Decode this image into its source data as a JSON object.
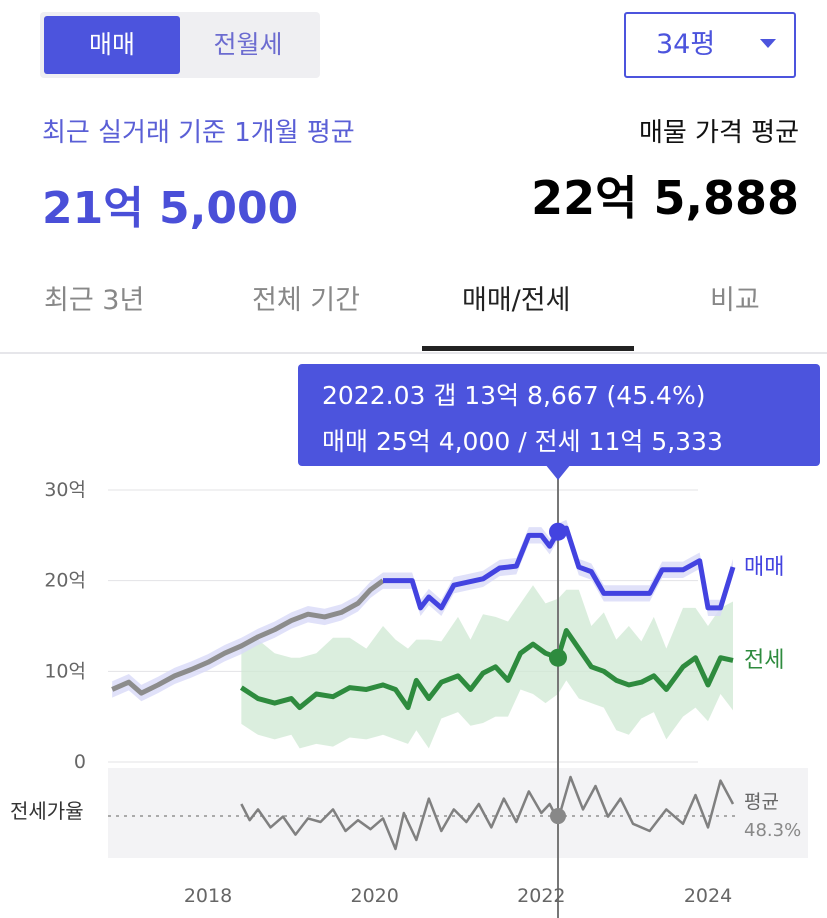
{
  "toggle": {
    "sale": "매매",
    "jeonse_monthly": "전월세"
  },
  "size_select": {
    "value": "34평"
  },
  "recent": {
    "label": "최근 실거래 기준 1개월 평균",
    "value": "21억 5,000"
  },
  "asking": {
    "label": "매물 가격 평균",
    "value": "22억 5,888"
  },
  "tabs": [
    "최근 3년",
    "전체 기간",
    "매매/전세",
    "비교"
  ],
  "tooltip": {
    "line1": "2022.03  갭 13억 8,667 (45.4%)",
    "line2": "매매 25억 4,000 / 전세 11억 5,333"
  },
  "colors": {
    "accent": "#4c54dd",
    "sale": "#4343e0",
    "sale_past": "#8c8c8c",
    "jeonse": "#2e8b3e",
    "jeonse_band": "#cfe8d3",
    "ratio": "#808080"
  },
  "chart_data": {
    "type": "line",
    "x_unit": "year",
    "ylabel_unit": "억",
    "yticks": [
      "30억",
      "20억",
      "10억",
      "0"
    ],
    "ylim": [
      0,
      30
    ],
    "xlim": [
      2016.8,
      2025.2
    ],
    "xticks": [
      "2018",
      "2020",
      "2022",
      "2024"
    ],
    "xtick_values": [
      2018,
      2020,
      2022,
      2024
    ],
    "series": [
      {
        "name": "매매",
        "values": [
          [
            2016.85,
            8.0
          ],
          [
            2017.05,
            8.8
          ],
          [
            2017.2,
            7.6
          ],
          [
            2017.4,
            8.5
          ],
          [
            2017.6,
            9.5
          ],
          [
            2017.8,
            10.2
          ],
          [
            2018.0,
            11.0
          ],
          [
            2018.2,
            12.0
          ],
          [
            2018.4,
            12.8
          ],
          [
            2018.6,
            13.8
          ],
          [
            2018.8,
            14.6
          ],
          [
            2019.0,
            15.6
          ],
          [
            2019.2,
            16.3
          ],
          [
            2019.4,
            16.0
          ],
          [
            2019.6,
            16.5
          ],
          [
            2019.8,
            17.5
          ],
          [
            2019.95,
            19.0
          ],
          [
            2020.1,
            20.0
          ],
          [
            2020.3,
            20.0
          ],
          [
            2020.45,
            20.0
          ],
          [
            2020.55,
            17.0
          ],
          [
            2020.65,
            18.2
          ],
          [
            2020.8,
            17.0
          ],
          [
            2020.95,
            19.5
          ],
          [
            2021.1,
            19.8
          ],
          [
            2021.3,
            20.2
          ],
          [
            2021.5,
            21.4
          ],
          [
            2021.7,
            21.6
          ],
          [
            2021.85,
            25.0
          ],
          [
            2022.0,
            25.0
          ],
          [
            2022.1,
            23.8
          ],
          [
            2022.2,
            25.4
          ],
          [
            2022.3,
            25.8
          ],
          [
            2022.45,
            21.5
          ],
          [
            2022.6,
            21.0
          ],
          [
            2022.75,
            18.6
          ],
          [
            2023.0,
            18.6
          ],
          [
            2023.3,
            18.6
          ],
          [
            2023.45,
            21.2
          ],
          [
            2023.7,
            21.2
          ],
          [
            2023.9,
            22.2
          ],
          [
            2024.0,
            17.0
          ],
          [
            2024.15,
            17.0
          ],
          [
            2024.3,
            21.5
          ]
        ]
      },
      {
        "name": "전세",
        "values": [
          [
            2018.4,
            8.2
          ],
          [
            2018.6,
            7.0
          ],
          [
            2018.8,
            6.5
          ],
          [
            2019.0,
            7.0
          ],
          [
            2019.1,
            6.0
          ],
          [
            2019.3,
            7.5
          ],
          [
            2019.5,
            7.2
          ],
          [
            2019.7,
            8.2
          ],
          [
            2019.9,
            8.0
          ],
          [
            2020.1,
            8.5
          ],
          [
            2020.25,
            8.0
          ],
          [
            2020.4,
            6.0
          ],
          [
            2020.5,
            9.0
          ],
          [
            2020.65,
            7.0
          ],
          [
            2020.8,
            8.8
          ],
          [
            2021.0,
            9.5
          ],
          [
            2021.15,
            8.0
          ],
          [
            2021.3,
            9.8
          ],
          [
            2021.45,
            10.5
          ],
          [
            2021.6,
            9.0
          ],
          [
            2021.75,
            12.0
          ],
          [
            2021.9,
            13.0
          ],
          [
            2022.05,
            12.0
          ],
          [
            2022.2,
            11.5
          ],
          [
            2022.3,
            14.5
          ],
          [
            2022.45,
            12.5
          ],
          [
            2022.6,
            10.5
          ],
          [
            2022.75,
            10.0
          ],
          [
            2022.9,
            9.0
          ],
          [
            2023.05,
            8.5
          ],
          [
            2023.2,
            8.8
          ],
          [
            2023.35,
            9.5
          ],
          [
            2023.5,
            8.0
          ],
          [
            2023.7,
            10.5
          ],
          [
            2023.85,
            11.5
          ],
          [
            2024.0,
            8.5
          ],
          [
            2024.15,
            11.5
          ],
          [
            2024.3,
            11.2
          ]
        ]
      },
      {
        "name": "전세가율",
        "values": [
          [
            2018.4,
            55
          ],
          [
            2018.5,
            46
          ],
          [
            2018.6,
            52
          ],
          [
            2018.75,
            42
          ],
          [
            2018.9,
            48
          ],
          [
            2019.05,
            38
          ],
          [
            2019.2,
            47
          ],
          [
            2019.35,
            45
          ],
          [
            2019.5,
            52
          ],
          [
            2019.65,
            40
          ],
          [
            2019.8,
            46
          ],
          [
            2019.95,
            41
          ],
          [
            2020.1,
            47
          ],
          [
            2020.25,
            30
          ],
          [
            2020.35,
            50
          ],
          [
            2020.5,
            35
          ],
          [
            2020.65,
            58
          ],
          [
            2020.8,
            40
          ],
          [
            2020.95,
            52
          ],
          [
            2021.1,
            45
          ],
          [
            2021.25,
            55
          ],
          [
            2021.4,
            42
          ],
          [
            2021.55,
            58
          ],
          [
            2021.7,
            45
          ],
          [
            2021.85,
            62
          ],
          [
            2022.0,
            50
          ],
          [
            2022.1,
            55
          ],
          [
            2022.2,
            46
          ],
          [
            2022.35,
            70
          ],
          [
            2022.5,
            52
          ],
          [
            2022.65,
            65
          ],
          [
            2022.8,
            48
          ],
          [
            2022.95,
            58
          ],
          [
            2023.1,
            44
          ],
          [
            2023.3,
            40
          ],
          [
            2023.5,
            52
          ],
          [
            2023.7,
            44
          ],
          [
            2023.85,
            60
          ],
          [
            2024.0,
            42
          ],
          [
            2024.15,
            68
          ],
          [
            2024.3,
            55
          ]
        ]
      }
    ],
    "band_label": "전세",
    "ratio_label": "전세가율",
    "avg_label": "평균",
    "avg_value": "48.3%",
    "marker_x": 2022.2,
    "marker_sale": 25.4,
    "marker_jeonse": 11.5
  }
}
